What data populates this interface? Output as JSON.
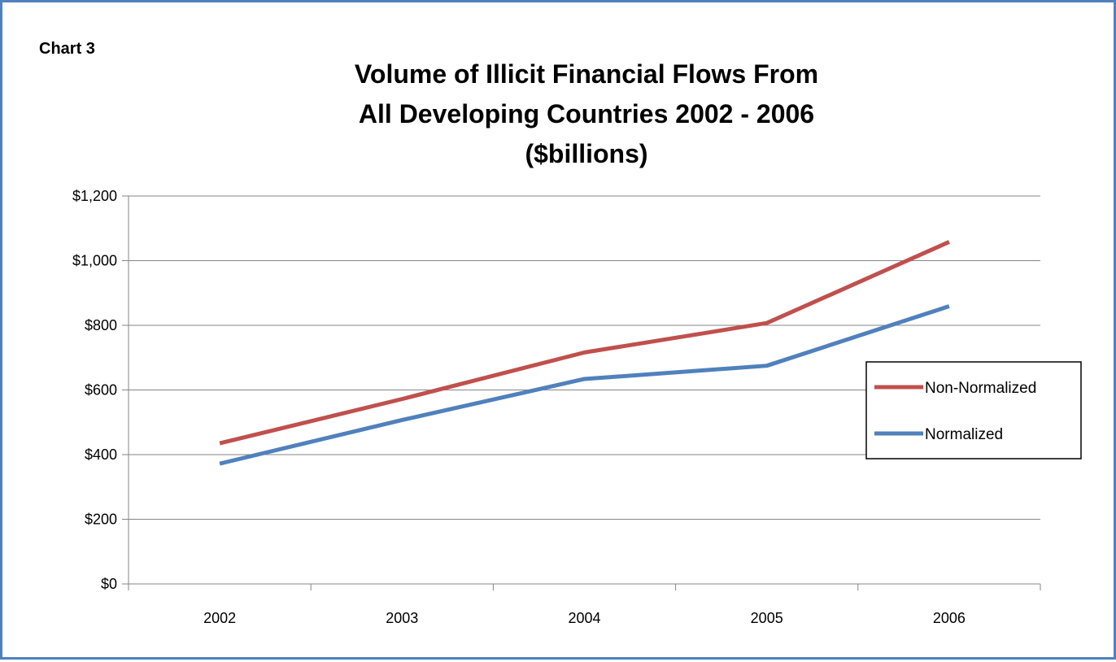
{
  "chart_label": "Chart 3",
  "chart_data": {
    "type": "line",
    "title_lines": [
      "Volume of Illicit Financial Flows From",
      "All Developing Countries 2002 - 2006",
      "($billions)"
    ],
    "xlabel": "",
    "ylabel": "",
    "categories": [
      "2002",
      "2003",
      "2004",
      "2005",
      "2006"
    ],
    "ylim": [
      0,
      1200
    ],
    "y_ticks": [
      0,
      200,
      400,
      600,
      800,
      1000,
      1200
    ],
    "y_tick_labels": [
      "$0",
      "$200",
      "$400",
      "$600",
      "$800",
      "$1,000",
      "$1,200"
    ],
    "grid": true,
    "legend_position": "right",
    "series": [
      {
        "name": "Non-Normalized",
        "color": "#c0504d",
        "values": [
          435,
          572,
          716,
          807,
          1058
        ]
      },
      {
        "name": "Normalized",
        "color": "#4f81bd",
        "values": [
          372,
          507,
          634,
          675,
          859
        ]
      }
    ]
  }
}
